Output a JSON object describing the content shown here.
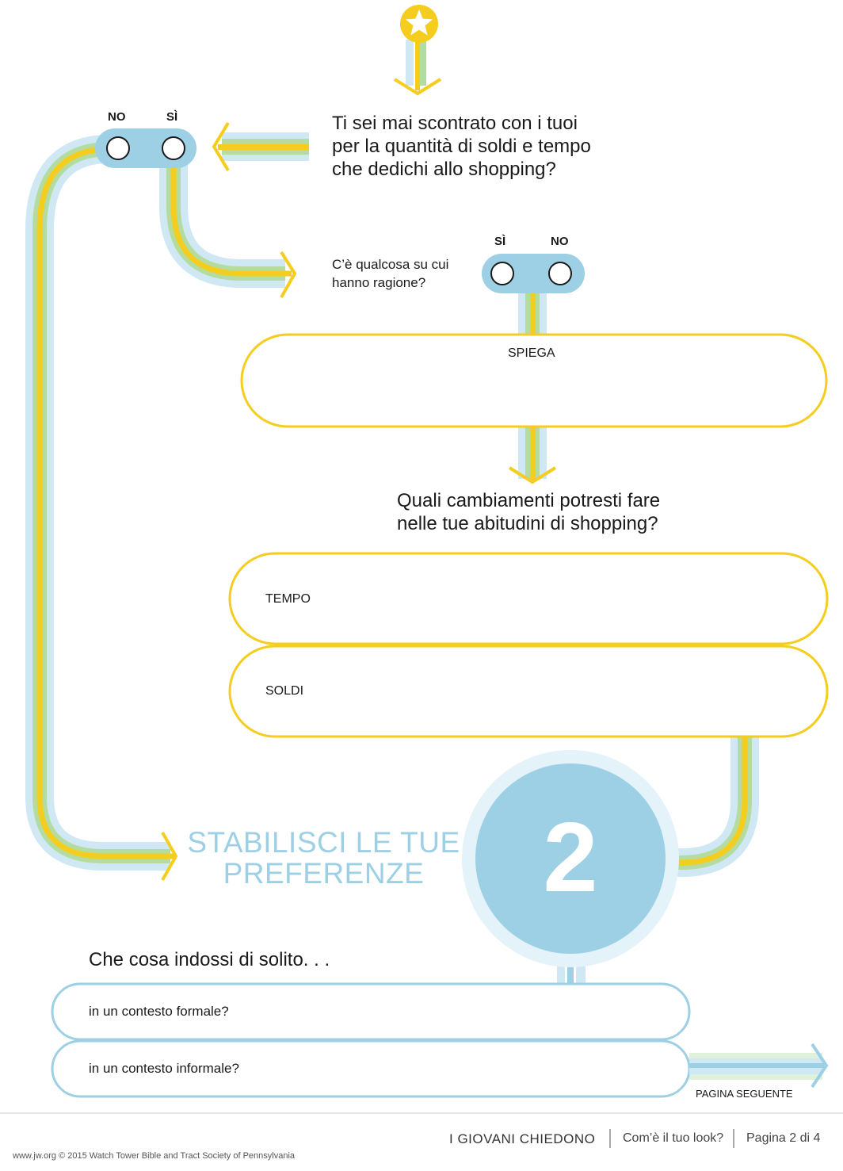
{
  "question1": {
    "lines": [
      "Ti sei mai scontrato con i tuoi",
      "per la quantità di soldi e tempo",
      "che dedichi allo shopping?"
    ],
    "no_label": "NO",
    "yes_label": "SÌ"
  },
  "question2": {
    "lines": [
      "C’è qualcosa su cui",
      "hanno ragione?"
    ],
    "yes_label": "SÌ",
    "no_label": "NO"
  },
  "explain_box": {
    "label": "SPIEGA"
  },
  "question3": {
    "lines": [
      "Quali cambiamenti potresti fare",
      "nelle tue abitudini di shopping?"
    ]
  },
  "time_box": {
    "label": "TEMPO"
  },
  "money_box": {
    "label": "SOLDI"
  },
  "step": {
    "title_lines": [
      "STABILISCI LE TUE",
      "PREFERENZE"
    ],
    "number": "2"
  },
  "question4": {
    "text": "Che cosa indossi di solito. . .",
    "formal": "in un contesto formale?",
    "informal": "in un contesto informale?"
  },
  "next_page": "PAGINA SEGUENTE",
  "footer": {
    "series": "I GIOVANI CHIEDONO",
    "article": "Com’è il tuo look?",
    "page": "Pagina 2 di 4",
    "copyright": "www.jw.org © 2015 Watch Tower Bible and Tract Society of Pennsylvania"
  },
  "colors": {
    "yellow": "#f5cd1e",
    "green": "#b5dca0",
    "light_blue": "#cfe8f3",
    "blue": "#9dd0e5",
    "pale_blue": "#e4f2f9"
  }
}
